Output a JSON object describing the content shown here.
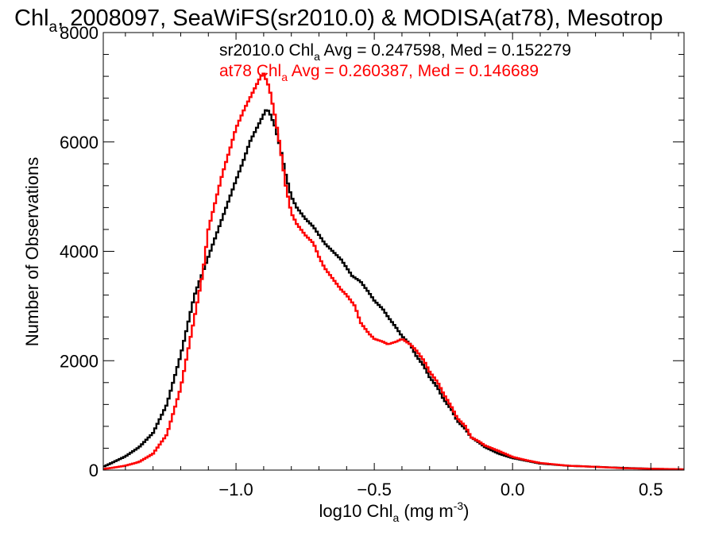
{
  "chart_data": {
    "type": "line",
    "title": {
      "main": "Chl",
      "sub": "a",
      "rest": ", 2008097, SeaWiFS(sr2010.0) & MODISA(at78), Mesotrop"
    },
    "xlabel": {
      "pre": "log10 Chl",
      "sub": "a",
      "mid": " (mg m",
      "sup": "-3",
      "post": ")"
    },
    "ylabel": "Number of Observations",
    "xlim": [
      -1.48,
      0.62
    ],
    "ylim": [
      0,
      8000
    ],
    "x_ticks": [
      -1.0,
      -0.5,
      0.0,
      0.5
    ],
    "x_tick_labels": [
      "−1.0",
      "−0.5",
      "0.0",
      "0.5"
    ],
    "y_ticks": [
      0,
      2000,
      4000,
      6000,
      8000
    ],
    "y_tick_labels": [
      "0",
      "2000",
      "4000",
      "6000",
      "8000"
    ],
    "grid": false,
    "annotations": [
      {
        "pre": "sr2010.0 Chl",
        "sub": "a",
        "post": " Avg = 0.247598, Med = 0.152279",
        "color": "#000000"
      },
      {
        "pre": "at78 Chl",
        "sub": "a",
        "post": " Avg = 0.260387, Med = 0.146689",
        "color": "#ff0000"
      }
    ],
    "series": [
      {
        "color": "#000000",
        "x": [
          -1.48,
          -1.45,
          -1.4,
          -1.35,
          -1.3,
          -1.25,
          -1.2,
          -1.15,
          -1.1,
          -1.05,
          -1.0,
          -0.97,
          -0.95,
          -0.93,
          -0.91,
          -0.89,
          -0.88,
          -0.86,
          -0.84,
          -0.82,
          -0.8,
          -0.78,
          -0.75,
          -0.72,
          -0.7,
          -0.68,
          -0.65,
          -0.62,
          -0.6,
          -0.58,
          -0.55,
          -0.52,
          -0.5,
          -0.47,
          -0.45,
          -0.42,
          -0.4,
          -0.37,
          -0.35,
          -0.32,
          -0.3,
          -0.27,
          -0.25,
          -0.22,
          -0.2,
          -0.17,
          -0.15,
          -0.12,
          -0.1,
          -0.05,
          0.0,
          0.05,
          0.1,
          0.2,
          0.3,
          0.4,
          0.5,
          0.62
        ],
        "y": [
          60,
          130,
          250,
          420,
          680,
          1200,
          2100,
          3200,
          3900,
          4600,
          5300,
          5700,
          6000,
          6200,
          6400,
          6600,
          6550,
          6300,
          5900,
          5400,
          5000,
          4800,
          4600,
          4450,
          4300,
          4150,
          4000,
          3850,
          3700,
          3550,
          3450,
          3250,
          3100,
          2950,
          2800,
          2600,
          2450,
          2300,
          2100,
          1900,
          1700,
          1500,
          1300,
          1100,
          900,
          750,
          600,
          500,
          420,
          300,
          220,
          170,
          120,
          80,
          60,
          40,
          25,
          10
        ]
      },
      {
        "color": "#ff0000",
        "x": [
          -1.48,
          -1.45,
          -1.4,
          -1.35,
          -1.3,
          -1.25,
          -1.2,
          -1.15,
          -1.12,
          -1.1,
          -1.07,
          -1.05,
          -1.02,
          -1.0,
          -0.97,
          -0.95,
          -0.93,
          -0.91,
          -0.9,
          -0.88,
          -0.86,
          -0.84,
          -0.82,
          -0.8,
          -0.78,
          -0.75,
          -0.72,
          -0.7,
          -0.68,
          -0.65,
          -0.62,
          -0.6,
          -0.57,
          -0.55,
          -0.52,
          -0.5,
          -0.47,
          -0.45,
          -0.42,
          -0.4,
          -0.37,
          -0.35,
          -0.32,
          -0.3,
          -0.27,
          -0.25,
          -0.22,
          -0.2,
          -0.17,
          -0.15,
          -0.12,
          -0.1,
          -0.05,
          0.0,
          0.05,
          0.1,
          0.2,
          0.3,
          0.4,
          0.5,
          0.62
        ],
        "y": [
          20,
          40,
          80,
          150,
          300,
          650,
          1500,
          2800,
          3600,
          4400,
          5000,
          5400,
          5900,
          6250,
          6600,
          6800,
          7000,
          7200,
          7250,
          7000,
          6500,
          5900,
          5200,
          4700,
          4500,
          4300,
          4150,
          3900,
          3700,
          3500,
          3300,
          3200,
          3000,
          2700,
          2500,
          2400,
          2350,
          2300,
          2350,
          2400,
          2300,
          2200,
          2000,
          1800,
          1600,
          1400,
          1150,
          950,
          800,
          600,
          520,
          450,
          350,
          240,
          180,
          130,
          80,
          60,
          35,
          25,
          15
        ]
      }
    ]
  }
}
